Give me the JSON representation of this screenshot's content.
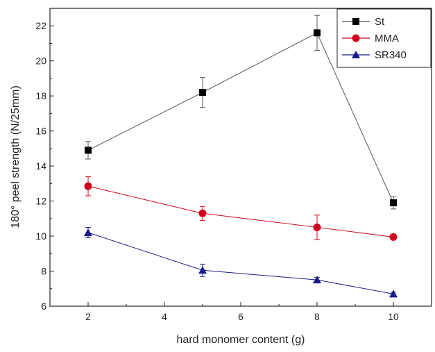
{
  "chart_data": {
    "type": "line",
    "title": "",
    "xlabel": "hard monomer content (g)",
    "ylabel": "180° peel strength (N/25mm)",
    "xlim": [
      1,
      11
    ],
    "ylim": [
      6,
      23
    ],
    "xticks": [
      2,
      4,
      6,
      8,
      10
    ],
    "yticks": [
      6,
      8,
      10,
      12,
      14,
      16,
      18,
      20,
      22
    ],
    "grid": false,
    "legend": "top-right",
    "x": [
      2,
      5,
      8,
      10
    ],
    "series": [
      {
        "name": "St",
        "marker": "square",
        "color": "#000000",
        "line_color": "#555555",
        "values": [
          14.9,
          18.2,
          21.6,
          11.9
        ],
        "errors": [
          0.5,
          0.85,
          1.0,
          0.35
        ]
      },
      {
        "name": "MMA",
        "marker": "circle",
        "color": "#d0021b",
        "line_color": "#d0021b",
        "values": [
          12.85,
          11.3,
          10.5,
          9.95
        ],
        "errors": [
          0.55,
          0.4,
          0.7,
          0.15
        ]
      },
      {
        "name": "SR340",
        "marker": "triangle",
        "color": "#1a1a8c",
        "line_color": "#1a1a8c",
        "values": [
          10.2,
          8.05,
          7.5,
          6.7
        ],
        "errors": [
          0.3,
          0.35,
          0.15,
          0.1
        ]
      }
    ]
  }
}
